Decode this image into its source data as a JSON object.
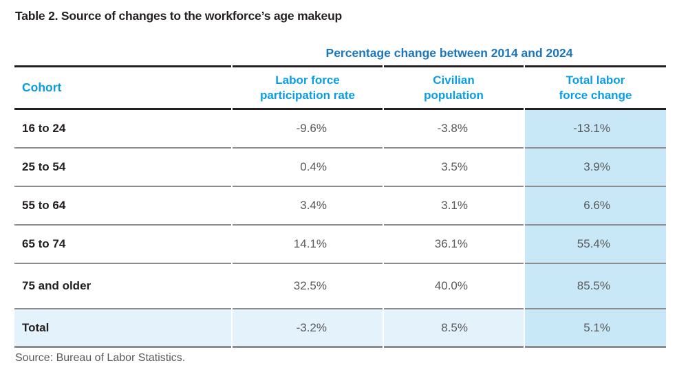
{
  "page": {
    "title": "Table 2. Source of changes to the workforce’s age makeup",
    "source_note": "Source: Bureau of Labor Statistics."
  },
  "table": {
    "spanner_header": "Percentage change between 2014 and 2024",
    "cohort_header": "Cohort",
    "columns": [
      {
        "line1": "Labor force",
        "line2": "participation rate"
      },
      {
        "line1": "Civilian",
        "line2": "population"
      },
      {
        "line1": "Total labor",
        "line2": "force change"
      }
    ],
    "rows": [
      {
        "cohort": "16 to 24",
        "participation": "-9.6%",
        "population": "-3.8%",
        "total": "-13.1%"
      },
      {
        "cohort": "25 to 54",
        "participation": "0.4%",
        "population": "3.5%",
        "total": "3.9%"
      },
      {
        "cohort": "55 to 64",
        "participation": "3.4%",
        "population": "3.1%",
        "total": "6.6%"
      },
      {
        "cohort": "65 to 74",
        "participation": "14.1%",
        "population": "36.1%",
        "total": "55.4%"
      },
      {
        "cohort": "75 and older",
        "participation": "32.5%",
        "population": "40.0%",
        "total": "85.5%"
      }
    ],
    "total_row": {
      "cohort": "Total",
      "participation": "-3.2%",
      "population": "8.5%",
      "total": "5.1%"
    }
  },
  "colors": {
    "column_header_blue": "#0b9de4",
    "spanner_blue": "#1b75bb",
    "highlight_column_bg": "#c8e7f7",
    "total_row_bg": "#e4f3fb",
    "dark_rule": "#231f20",
    "gray_rule": "#8d8d8d",
    "value_text": "#58595b"
  },
  "chart_data": {
    "type": "table",
    "title": "Table 2. Source of changes to the workforce’s age makeup",
    "spanner": "Percentage change between 2014 and 2024",
    "columns": [
      "Cohort",
      "Labor force participation rate",
      "Civilian population",
      "Total labor force change"
    ],
    "rows": [
      [
        "16 to 24",
        -9.6,
        -3.8,
        -13.1
      ],
      [
        "25 to 54",
        0.4,
        3.5,
        3.9
      ],
      [
        "55 to 64",
        3.4,
        3.1,
        6.6
      ],
      [
        "65 to 74",
        14.1,
        36.1,
        55.4
      ],
      [
        "75 and older",
        32.5,
        40.0,
        85.5
      ],
      [
        "Total",
        -3.2,
        8.5,
        5.1
      ]
    ],
    "units": "percent change 2014-2024",
    "source": "Bureau of Labor Statistics"
  }
}
